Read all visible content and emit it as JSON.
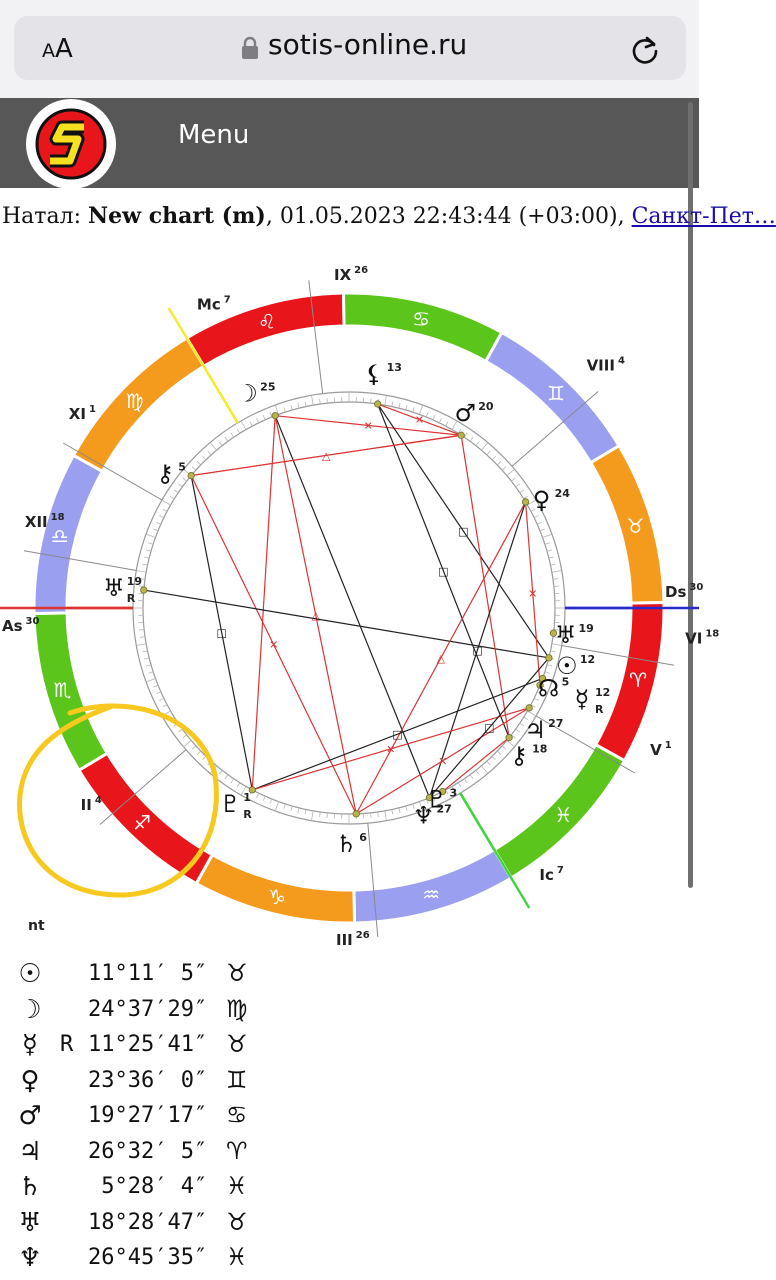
{
  "browser": {
    "aa_small": "A",
    "aa_big": "A",
    "domain": "sotis-online.ru"
  },
  "nav": {
    "menu_label": "Menu"
  },
  "chart_info": {
    "prefix": "Натал: ",
    "chart_name": "New chart (m)",
    "datetime": ", 01.05.2023 22:43:44 (+03:00), ",
    "place": "Санкт-Пет…"
  },
  "wheel": {
    "signs": [
      {
        "glyph": "♌"
      },
      {
        "glyph": "♋"
      },
      {
        "glyph": "♊"
      },
      {
        "glyph": "♉"
      },
      {
        "glyph": "♈"
      },
      {
        "glyph": "♓"
      },
      {
        "glyph": "♒"
      },
      {
        "glyph": "♑"
      },
      {
        "glyph": "♐"
      },
      {
        "glyph": "♏"
      },
      {
        "glyph": "♎"
      },
      {
        "glyph": "♍"
      }
    ],
    "houses": [
      {
        "label": "IX",
        "deg": "26"
      },
      {
        "label": "Mc",
        "deg": "7"
      },
      {
        "label": "XI",
        "deg": "1"
      },
      {
        "label": "XII",
        "deg": "18"
      },
      {
        "label": "As",
        "deg": "30"
      },
      {
        "label": "II",
        "deg": "4"
      },
      {
        "label": "III",
        "deg": "26"
      },
      {
        "label": "Ic",
        "deg": "7"
      },
      {
        "label": "V",
        "deg": "1"
      },
      {
        "label": "VI",
        "deg": "18"
      },
      {
        "label": "Ds",
        "deg": "30"
      },
      {
        "label": "VIII",
        "deg": "4"
      }
    ],
    "planets": [
      {
        "glyph": "☽",
        "deg": "25",
        "retro": ""
      },
      {
        "glyph": "⚸",
        "deg": "13",
        "retro": ""
      },
      {
        "glyph": "♂",
        "deg": "20",
        "retro": ""
      },
      {
        "glyph": "♀",
        "deg": "24",
        "retro": ""
      },
      {
        "glyph": "⚷",
        "deg": "5",
        "retro": ""
      },
      {
        "glyph": "♅",
        "deg": "19",
        "retro": "R"
      },
      {
        "glyph": "☉",
        "deg": "12",
        "retro": ""
      },
      {
        "glyph": "♅",
        "deg": "19",
        "retro": ""
      },
      {
        "glyph": "☿",
        "deg": "12",
        "retro": "R"
      },
      {
        "glyph": "☊",
        "deg": "5",
        "retro": ""
      },
      {
        "glyph": "♃",
        "deg": "27",
        "retro": ""
      },
      {
        "glyph": "⚷",
        "deg": "18",
        "retro": ""
      },
      {
        "glyph": "♆",
        "deg": "27",
        "retro": ""
      },
      {
        "glyph": "♇",
        "deg": "3",
        "retro": ""
      },
      {
        "glyph": "♄",
        "deg": "6",
        "retro": ""
      },
      {
        "glyph": "♇",
        "deg": "1",
        "retro": "R"
      }
    ]
  },
  "table": {
    "title": "nt",
    "rows": [
      {
        "glyph": "☉",
        "retro": "",
        "pos": "11°11′ 5″",
        "sign": "♉"
      },
      {
        "glyph": "☽",
        "retro": "",
        "pos": "24°37′29″",
        "sign": "♍"
      },
      {
        "glyph": "☿",
        "retro": "R",
        "pos": "11°25′41″",
        "sign": "♉"
      },
      {
        "glyph": "♀",
        "retro": "",
        "pos": "23°36′ 0″",
        "sign": "♊"
      },
      {
        "glyph": "♂",
        "retro": "",
        "pos": "19°27′17″",
        "sign": "♋"
      },
      {
        "glyph": "♃",
        "retro": "",
        "pos": "26°32′ 5″",
        "sign": "♈"
      },
      {
        "glyph": "♄",
        "retro": "",
        "pos": " 5°28′ 4″",
        "sign": "♓"
      },
      {
        "glyph": "♅",
        "retro": "",
        "pos": "18°28′47″",
        "sign": "♉"
      },
      {
        "glyph": "♆",
        "retro": "",
        "pos": "26°45′35″",
        "sign": "♓"
      }
    ]
  },
  "colors": {
    "fire": "#e8161b",
    "earth": "#f49a1d",
    "air": "#9a9ff0",
    "water": "#5cc51b",
    "highlight": "#f7c81d"
  }
}
